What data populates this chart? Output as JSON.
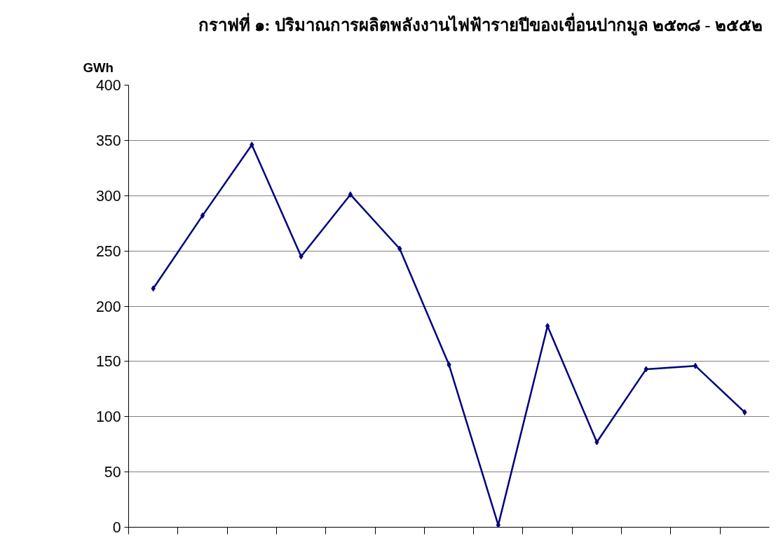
{
  "chart_data": {
    "type": "line",
    "title": "กราฟที่ ๑: ปริมาณการผลิตพลังงานไฟฟ้ารายปีของเขื่อนปากมูล ๒๕๓๘ - ๒๕๕๒",
    "ylabel": "GWh",
    "categories": [
      null,
      null,
      null,
      null,
      null,
      null,
      null,
      null,
      null,
      null,
      null,
      null,
      null
    ],
    "series": [
      {
        "color": "#000080",
        "values": [
          216,
          282,
          346,
          245,
          301,
          252,
          147,
          2,
          182,
          77,
          143,
          146,
          104
        ]
      }
    ],
    "ylim": [
      0,
      400
    ],
    "yticks": [
      0,
      50,
      100,
      150,
      200,
      250,
      300,
      350,
      400
    ],
    "grid": "y",
    "marker": "diamond",
    "line_style": "solid"
  }
}
